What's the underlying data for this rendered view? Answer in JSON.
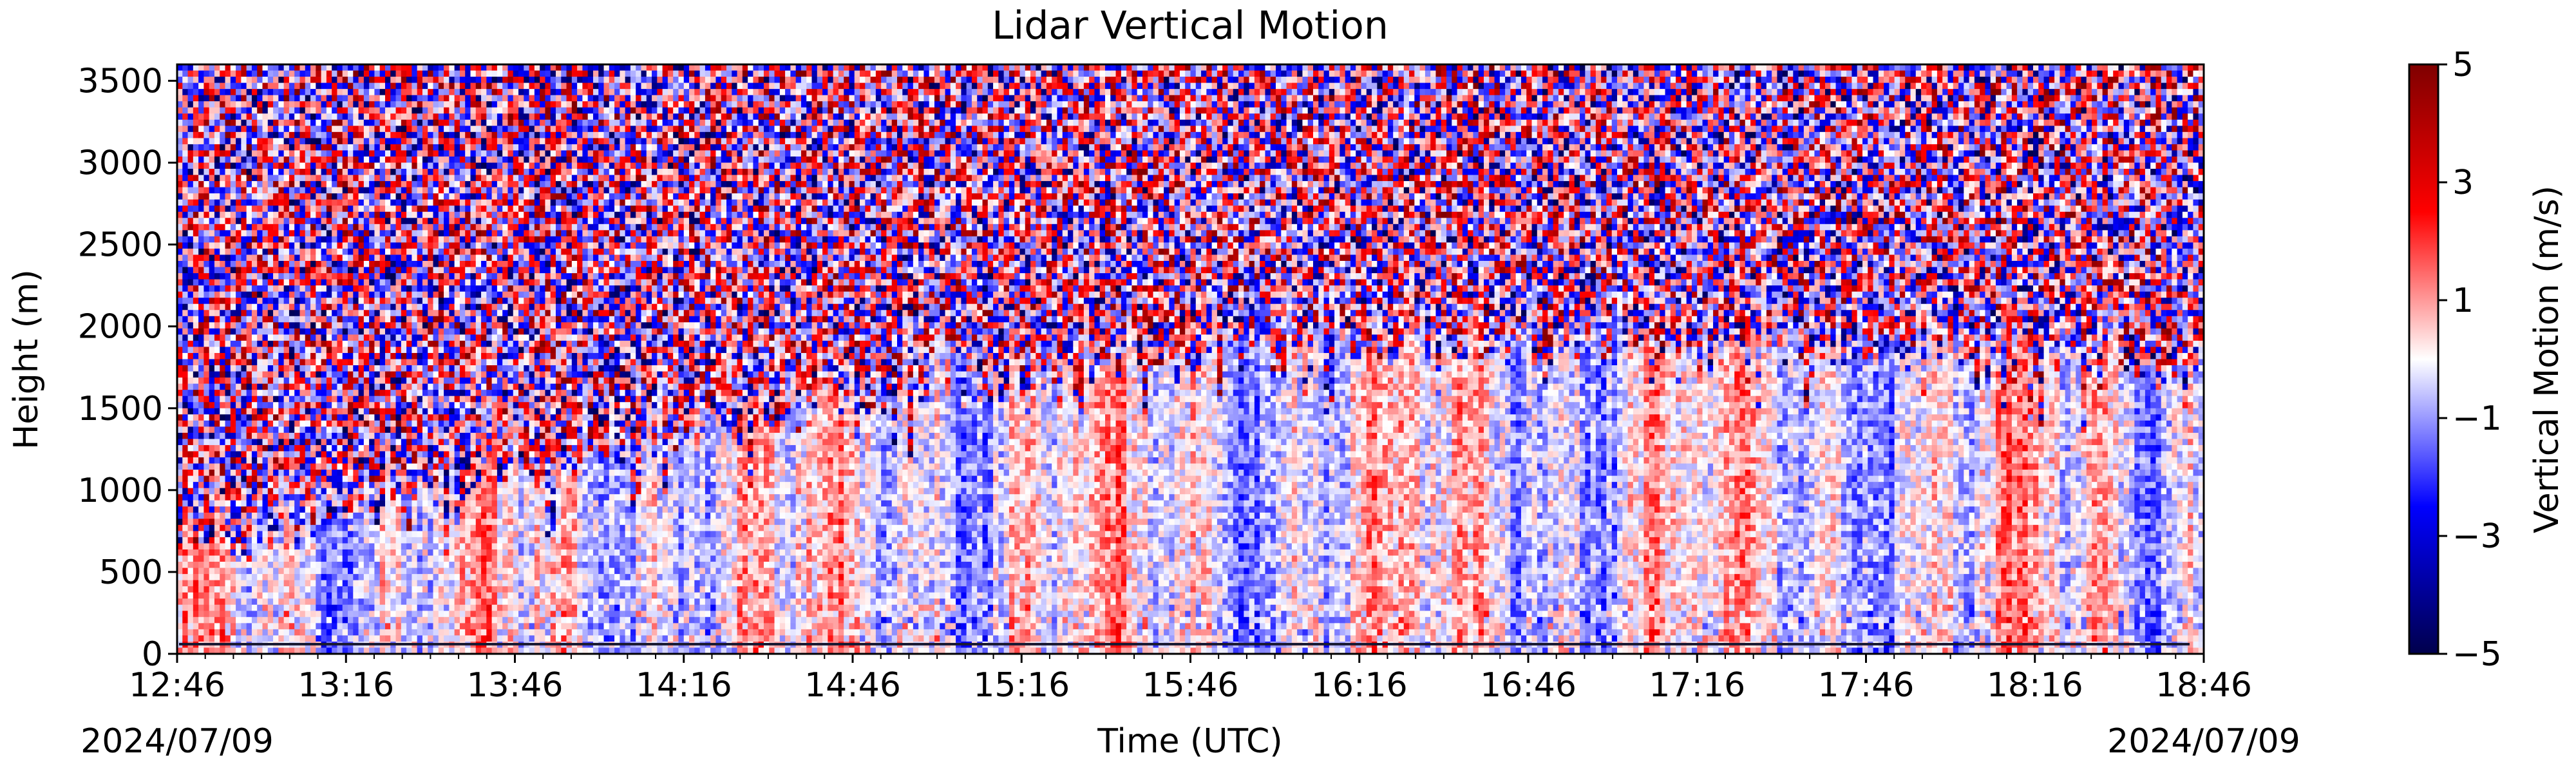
{
  "chart_data": {
    "type": "heatmap",
    "title": "Lidar Vertical Motion",
    "xlabel": "Time (UTC)",
    "ylabel": "Height (m)",
    "x_tick_labels": [
      "12:46",
      "13:16",
      "13:46",
      "14:16",
      "14:46",
      "15:16",
      "15:46",
      "16:16",
      "16:46",
      "17:16",
      "17:46",
      "18:16",
      "18:46"
    ],
    "x_range": [
      "12:46",
      "18:46"
    ],
    "date_left": "2024/07/09",
    "date_right": "2024/07/09",
    "y_ticks": [
      0,
      500,
      1000,
      1500,
      2000,
      2500,
      3000,
      3500
    ],
    "ylim": [
      0,
      3600
    ],
    "colorbar": {
      "label": "Vertical Motion (m/s)",
      "ticks": [
        -5,
        -3,
        -1,
        1,
        3,
        5
      ],
      "tick_labels": [
        "−5",
        "−3",
        "−1",
        "1",
        "3",
        "5"
      ],
      "range": [
        -5,
        5
      ],
      "colormap": "seismic",
      "colors": {
        "low": "#00004c",
        "mid_low": "#0000ff",
        "mid": "#ffffff",
        "mid_high": "#ff0000",
        "high": "#7f0000"
      }
    },
    "grid": false,
    "description_of_field": {
      "noisy_above_m": [
        1300,
        2600
      ],
      "boundary_layer_top_m_range": [
        600,
        2700
      ],
      "values_in_boundary_layer": [
        -2,
        2
      ],
      "values_in_noise_region": [
        -5,
        5
      ]
    }
  }
}
